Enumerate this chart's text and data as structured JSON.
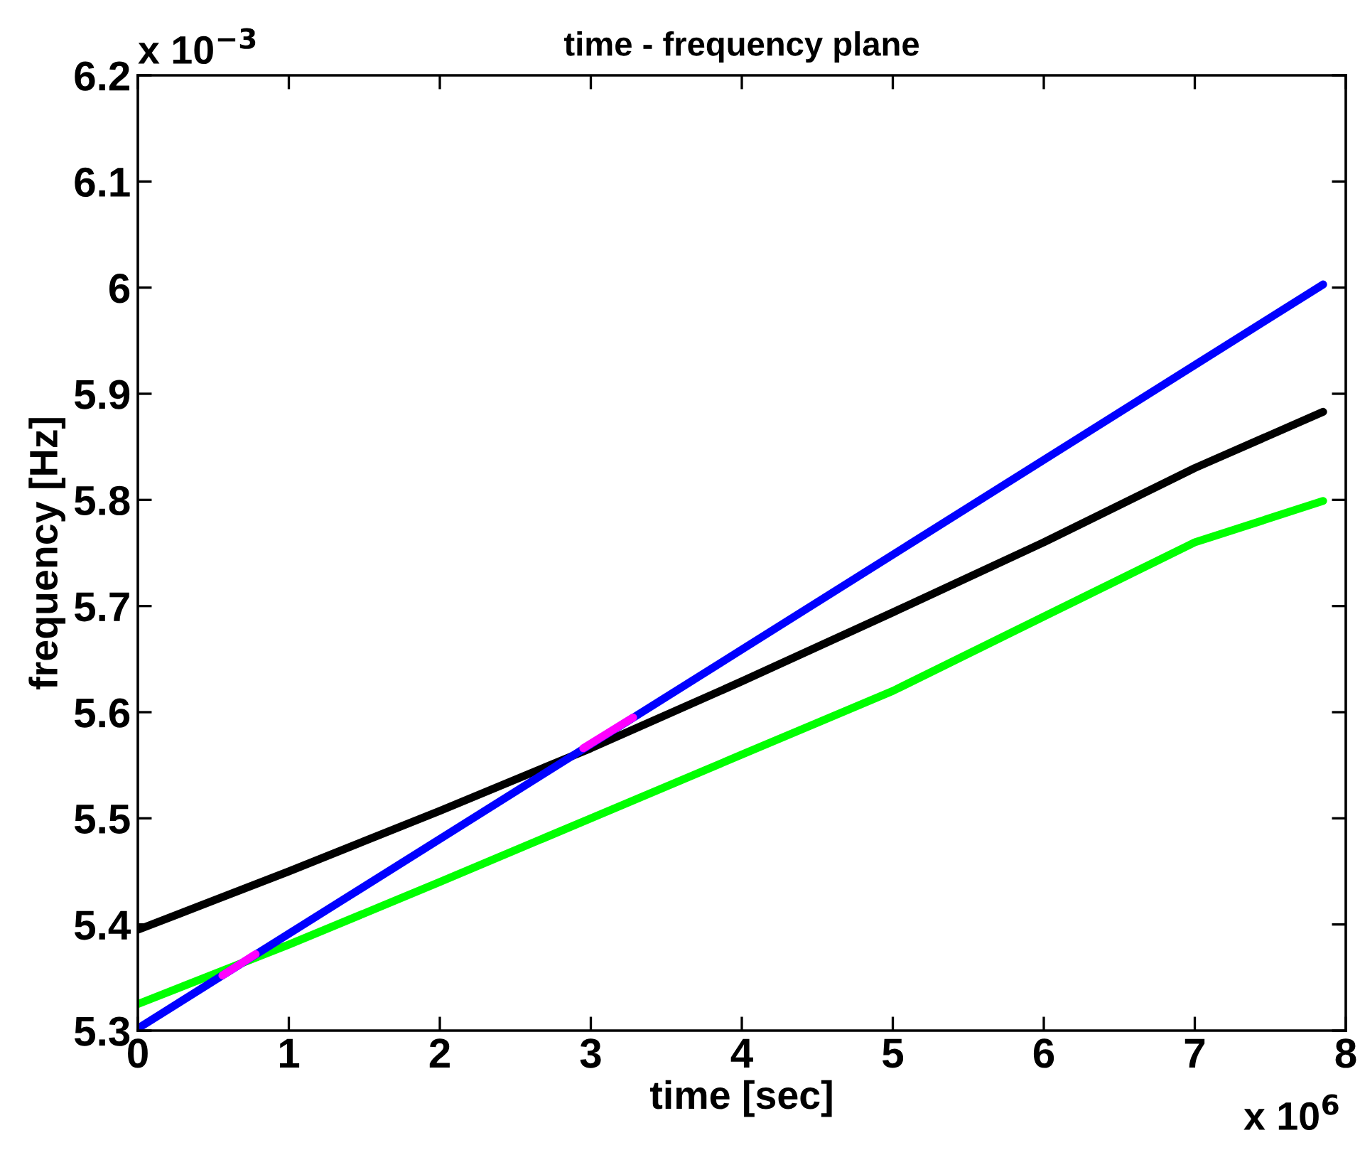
{
  "chart_data": {
    "type": "line",
    "title": "time - frequency plane",
    "xlabel": "time [sec]",
    "ylabel": "frequency [Hz]",
    "annotations": [
      "x 10$^{6}$",
      "x 10$^{−3}$"
    ],
    "xlim": [
      0,
      8
    ],
    "xticks": [
      0,
      1,
      2,
      3,
      4,
      5,
      6,
      7,
      8
    ],
    "ylim": [
      5.3,
      6.2
    ],
    "yticks": [
      5.3,
      5.4,
      5.5,
      5.6,
      5.7,
      5.8,
      5.9,
      6,
      6.1,
      6.2
    ],
    "grid": false,
    "legend": false,
    "line_style": "solid",
    "series": [
      {
        "color": "#000000",
        "x": [
          0,
          1,
          2,
          3,
          4,
          5,
          6,
          7,
          7.85
        ],
        "values": [
          5.395,
          5.45,
          5.507,
          5.566,
          5.629,
          5.694,
          5.76,
          5.83,
          5.883
        ]
      },
      {
        "color": "#00ff00",
        "x": [
          0,
          1,
          2,
          3,
          4,
          5,
          6,
          7,
          7.85
        ],
        "values": [
          5.325,
          5.381,
          5.44,
          5.5,
          5.56,
          5.62,
          5.69,
          5.76,
          5.799
        ]
      },
      {
        "color": "#0000ff",
        "x": [
          0,
          4,
          7.85
        ],
        "values": [
          5.302,
          5.659,
          6.003
        ]
      },
      {
        "color": "#ff00ff",
        "x": [
          0.56,
          0.78,
          1.5,
          2.95,
          3.28
        ],
        "values": [
          5.352,
          5.372,
          null,
          5.566,
          5.595
        ]
      }
    ]
  }
}
